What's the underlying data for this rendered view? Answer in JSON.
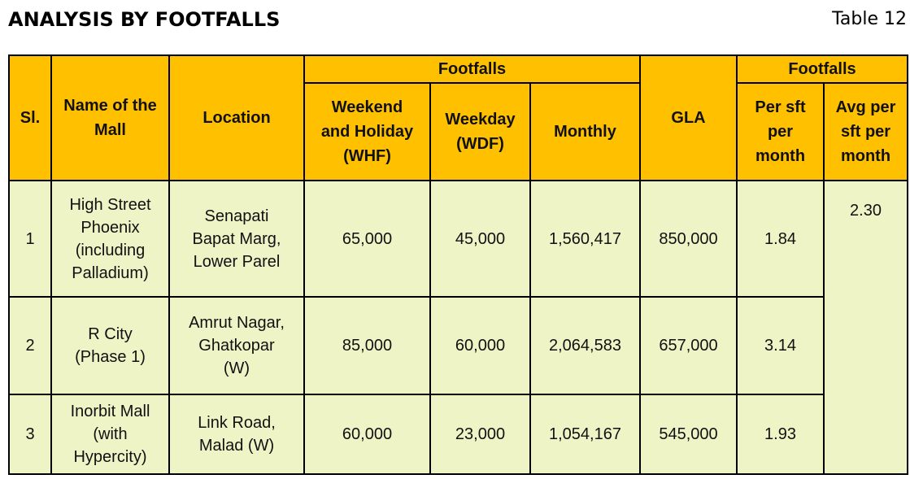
{
  "header": {
    "title": "ANALYSIS BY FOOTFALLS",
    "table_no": "Table 12"
  },
  "table": {
    "group_headers": [
      "Footfalls",
      "Footfalls"
    ],
    "columns": [
      [
        "Sl."
      ],
      [
        "Name of the",
        "Mall"
      ],
      [
        "Location"
      ],
      [
        "Weekend",
        "and Holiday",
        "(WHF)"
      ],
      [
        "Weekday",
        "(WDF)"
      ],
      [
        "Monthly"
      ],
      [
        "GLA"
      ],
      [
        "Per sft",
        "per",
        "month"
      ],
      [
        "Avg per",
        "sft per",
        "month"
      ]
    ],
    "rows": [
      [
        [
          "1"
        ],
        [
          "High Street",
          "Phoenix",
          "(including",
          "Palladium)"
        ],
        [
          "Senapati",
          "Bapat Marg,",
          "Lower Parel"
        ],
        [
          "65,000"
        ],
        [
          "45,000"
        ],
        [
          "1,560,417"
        ],
        [
          "850,000"
        ],
        [
          "1.84"
        ]
      ],
      [
        [
          "2"
        ],
        [
          "R City",
          "(Phase 1)"
        ],
        [
          "Amrut Nagar,",
          "Ghatkopar",
          "(W)"
        ],
        [
          "85,000"
        ],
        [
          "60,000"
        ],
        [
          "2,064,583"
        ],
        [
          "657,000"
        ],
        [
          "3.14"
        ]
      ],
      [
        [
          "3"
        ],
        [
          "Inorbit Mall",
          "(with",
          "Hypercity)"
        ],
        [
          "Link Road,",
          "Malad (W)"
        ],
        [
          "60,000"
        ],
        [
          "23,000"
        ],
        [
          "1,054,167"
        ],
        [
          "545,000"
        ],
        [
          "1.93"
        ]
      ]
    ],
    "avg": "2.30"
  }
}
